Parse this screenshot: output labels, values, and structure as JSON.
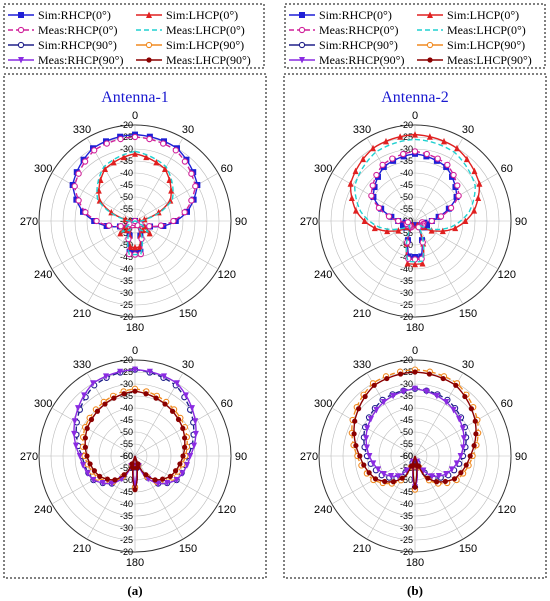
{
  "panels": [
    {
      "caption": "(a)",
      "title": "Antenna-1"
    },
    {
      "caption": "(b)",
      "title": "Antenna-2"
    }
  ],
  "legend_items": [
    {
      "label": "Sim:RHCP(0°)",
      "color": "#1f1fd6",
      "dash": "none",
      "marker": "square-filled"
    },
    {
      "label": "Sim:LHCP(0°)",
      "color": "#e02020",
      "dash": "none",
      "marker": "triangle-filled"
    },
    {
      "label": "Meas:RHCP(0°)",
      "color": "#d0209a",
      "dash": "dash",
      "marker": "circle-open"
    },
    {
      "label": "Meas:LHCP(0°)",
      "color": "#20d0d0",
      "dash": "dash",
      "marker": "none"
    },
    {
      "label": "Sim:RHCP(90°)",
      "color": "#20208a",
      "dash": "none",
      "marker": "circle-open"
    },
    {
      "label": "Sim:LHCP(90°)",
      "color": "#f08a20",
      "dash": "none",
      "marker": "circle-open"
    },
    {
      "label": "Meas:RHCP(90°)",
      "color": "#8a2be2",
      "dash": "none",
      "marker": "triangle-down-filled"
    },
    {
      "label": "Meas:LHCP(90°)",
      "color": "#8b0000",
      "dash": "none",
      "marker": "circle-filled"
    }
  ],
  "chart_data": [
    {
      "type": "polar-line",
      "panel": "Antenna-1",
      "plane": "0°",
      "r_range": [
        -60,
        -20
      ],
      "r_ticks": [
        "-20",
        "-25",
        "-30",
        "-35",
        "-40",
        "-45",
        "-50",
        "-55",
        "-60"
      ],
      "angle_ticks": [
        "0",
        "30",
        "60",
        "90",
        "120",
        "150",
        "180",
        "210",
        "240",
        "270",
        "300",
        "330"
      ],
      "series": [
        {
          "name": "Sim:RHCP(0°)",
          "color": "#1f1fd6",
          "style": "solid",
          "theta": [
            0,
            30,
            60,
            80,
            100,
            115,
            130,
            150,
            170,
            180,
            190,
            210,
            230,
            245,
            260,
            280,
            300,
            330
          ],
          "db": [
            -24,
            -25,
            -30,
            -38,
            -48,
            -56,
            -60,
            -60,
            -47,
            -47,
            -47,
            -60,
            -60,
            -56,
            -48,
            -38,
            -30,
            -25
          ]
        },
        {
          "name": "Sim:LHCP(0°)",
          "color": "#e02020",
          "style": "solid",
          "theta": [
            0,
            30,
            60,
            80,
            100,
            115,
            130,
            150,
            170,
            180,
            190,
            210,
            230,
            245,
            260,
            280,
            300,
            330
          ],
          "db": [
            -32,
            -35,
            -43,
            -56,
            -60,
            -57,
            -52,
            -58,
            -49,
            -49,
            -49,
            -58,
            -52,
            -57,
            -60,
            -56,
            -43,
            -35
          ]
        },
        {
          "name": "Meas:RHCP(0°)",
          "color": "#d0209a",
          "style": "dash",
          "theta": [
            0,
            30,
            60,
            80,
            100,
            115,
            130,
            150,
            170,
            180,
            190,
            210,
            230,
            245,
            260,
            280,
            300,
            330
          ],
          "db": [
            -25,
            -26,
            -31,
            -39,
            -49,
            -56,
            -60,
            -58,
            -46,
            -46,
            -46,
            -58,
            -60,
            -56,
            -49,
            -39,
            -31,
            -26
          ]
        },
        {
          "name": "Meas:LHCP(0°)",
          "color": "#20d0d0",
          "style": "dash",
          "theta": [
            0,
            30,
            60,
            80,
            100,
            115,
            130,
            150,
            170,
            180,
            190,
            210,
            230,
            245,
            260,
            280,
            300,
            330
          ],
          "db": [
            -31,
            -34,
            -42,
            -55,
            -60,
            -59,
            -53,
            -56,
            -46,
            -46,
            -46,
            -56,
            -53,
            -59,
            -60,
            -55,
            -42,
            -34
          ]
        }
      ]
    },
    {
      "type": "polar-line",
      "panel": "Antenna-1",
      "plane": "90°",
      "r_range": [
        -60,
        -20
      ],
      "r_ticks": [
        "-20",
        "-25",
        "-30",
        "-35",
        "-40",
        "-45",
        "-50",
        "-55",
        "-60"
      ],
      "angle_ticks": [
        "0",
        "30",
        "60",
        "90",
        "120",
        "150",
        "180",
        "210",
        "240",
        "270",
        "300",
        "330"
      ],
      "series": [
        {
          "name": "Sim:RHCP(90°)",
          "color": "#20208a",
          "style": "dash",
          "theta": [
            0,
            30,
            60,
            90,
            120,
            140,
            155,
            165,
            175,
            180,
            185,
            195,
            205,
            220,
            240,
            270,
            300,
            330
          ],
          "db": [
            -24,
            -26,
            -32,
            -38,
            -40,
            -45,
            -52,
            -60,
            -50,
            -47,
            -50,
            -60,
            -52,
            -45,
            -40,
            -38,
            -32,
            -26
          ]
        },
        {
          "name": "Sim:LHCP(90°)",
          "color": "#f08a20",
          "style": "dash",
          "theta": [
            0,
            30,
            60,
            90,
            120,
            140,
            155,
            165,
            175,
            180,
            185,
            195,
            205,
            220,
            240,
            270,
            300,
            330
          ],
          "db": [
            -32,
            -34,
            -36,
            -39,
            -42,
            -46,
            -52,
            -60,
            -51,
            -47,
            -51,
            -60,
            -52,
            -46,
            -42,
            -39,
            -36,
            -34
          ]
        },
        {
          "name": "Meas:RHCP(90°)",
          "color": "#8a2be2",
          "style": "solid",
          "theta": [
            0,
            30,
            60,
            90,
            120,
            140,
            155,
            165,
            175,
            180,
            185,
            195,
            205,
            220,
            240,
            270,
            300,
            330
          ],
          "db": [
            -24,
            -25,
            -31,
            -37,
            -40,
            -45,
            -51,
            -60,
            -52,
            -48,
            -52,
            -60,
            -51,
            -45,
            -40,
            -37,
            -31,
            -25
          ]
        },
        {
          "name": "Meas:LHCP(90°)",
          "color": "#8b0000",
          "style": "solid",
          "theta": [
            0,
            30,
            60,
            90,
            120,
            140,
            155,
            165,
            175,
            180,
            185,
            195,
            205,
            220,
            240,
            270,
            300,
            330
          ],
          "db": [
            -33,
            -35,
            -37,
            -40,
            -43,
            -47,
            -53,
            -60,
            -50,
            -46,
            -50,
            -60,
            -53,
            -47,
            -43,
            -40,
            -37,
            -35
          ]
        }
      ]
    },
    {
      "type": "polar-line",
      "panel": "Antenna-2",
      "plane": "0°",
      "r_range": [
        -60,
        -20
      ],
      "r_ticks": [
        "-20",
        "-25",
        "-30",
        "-35",
        "-40",
        "-45",
        "-50",
        "-55",
        "-60"
      ],
      "angle_ticks": [
        "0",
        "30",
        "60",
        "90",
        "120",
        "150",
        "180",
        "210",
        "240",
        "270",
        "300",
        "330"
      ],
      "series": [
        {
          "name": "Sim:RHCP(0°)",
          "color": "#1f1fd6",
          "style": "solid",
          "theta": [
            0,
            30,
            60,
            80,
            100,
            115,
            130,
            150,
            170,
            180,
            190,
            210,
            230,
            245,
            260,
            280,
            300,
            330
          ],
          "db": [
            -32,
            -34,
            -40,
            -50,
            -56,
            -54,
            -56,
            -58,
            -45,
            -45,
            -45,
            -58,
            -56,
            -54,
            -56,
            -50,
            -40,
            -34
          ]
        },
        {
          "name": "Sim:LHCP(0°)",
          "color": "#e02020",
          "style": "solid",
          "theta": [
            0,
            30,
            60,
            80,
            100,
            115,
            130,
            150,
            170,
            180,
            190,
            210,
            230,
            245,
            260,
            280,
            300,
            330
          ],
          "db": [
            -24,
            -25,
            -29,
            -35,
            -43,
            -50,
            -56,
            -58,
            -42,
            -42,
            -42,
            -58,
            -56,
            -50,
            -43,
            -35,
            -29,
            -25
          ]
        },
        {
          "name": "Meas:RHCP(0°)",
          "color": "#d0209a",
          "style": "dash",
          "theta": [
            0,
            30,
            60,
            80,
            100,
            115,
            130,
            150,
            170,
            180,
            190,
            210,
            230,
            245,
            260,
            280,
            300,
            330
          ],
          "db": [
            -31,
            -33,
            -39,
            -49,
            -57,
            -56,
            -57,
            -57,
            -44,
            -44,
            -44,
            -57,
            -57,
            -56,
            -57,
            -49,
            -39,
            -33
          ]
        },
        {
          "name": "Meas:LHCP(0°)",
          "color": "#20d0d0",
          "style": "dash",
          "theta": [
            0,
            30,
            60,
            80,
            100,
            115,
            130,
            150,
            170,
            180,
            190,
            210,
            230,
            245,
            260,
            280,
            300,
            330
          ],
          "db": [
            -26,
            -27,
            -31,
            -37,
            -45,
            -52,
            -57,
            -56,
            -43,
            -43,
            -43,
            -56,
            -57,
            -52,
            -45,
            -37,
            -31,
            -27
          ]
        }
      ]
    },
    {
      "type": "polar-line",
      "panel": "Antenna-2",
      "plane": "90°",
      "r_range": [
        -60,
        -20
      ],
      "r_ticks": [
        "-20",
        "-25",
        "-30",
        "-35",
        "-40",
        "-45",
        "-50",
        "-55",
        "-60"
      ],
      "angle_ticks": [
        "0",
        "30",
        "60",
        "90",
        "120",
        "150",
        "180",
        "210",
        "240",
        "270",
        "300",
        "330"
      ],
      "series": [
        {
          "name": "Sim:RHCP(90°)",
          "color": "#20208a",
          "style": "dash",
          "theta": [
            0,
            30,
            60,
            90,
            120,
            140,
            155,
            165,
            175,
            180,
            185,
            195,
            205,
            220,
            240,
            270,
            300,
            330
          ],
          "db": [
            -32,
            -33,
            -36,
            -40,
            -44,
            -48,
            -54,
            -60,
            -50,
            -47,
            -50,
            -60,
            -54,
            -48,
            -44,
            -40,
            -36,
            -33
          ]
        },
        {
          "name": "Sim:LHCP(90°)",
          "color": "#f08a20",
          "style": "dash",
          "theta": [
            0,
            30,
            60,
            90,
            120,
            140,
            155,
            165,
            175,
            180,
            185,
            195,
            205,
            220,
            240,
            270,
            300,
            330
          ],
          "db": [
            -24,
            -25,
            -30,
            -36,
            -40,
            -45,
            -50,
            -60,
            -51,
            -46,
            -51,
            -60,
            -50,
            -45,
            -40,
            -36,
            -30,
            -25
          ]
        },
        {
          "name": "Meas:RHCP(90°)",
          "color": "#8a2be2",
          "style": "solid",
          "theta": [
            0,
            30,
            60,
            90,
            120,
            140,
            155,
            165,
            175,
            180,
            185,
            195,
            205,
            220,
            240,
            270,
            300,
            330
          ],
          "db": [
            -32,
            -34,
            -37,
            -41,
            -45,
            -49,
            -55,
            -60,
            -50,
            -47,
            -50,
            -60,
            -55,
            -49,
            -45,
            -41,
            -37,
            -34
          ]
        },
        {
          "name": "Meas:LHCP(90°)",
          "color": "#8b0000",
          "style": "solid",
          "theta": [
            0,
            30,
            60,
            90,
            120,
            140,
            155,
            165,
            175,
            180,
            185,
            195,
            205,
            220,
            240,
            270,
            300,
            330
          ],
          "db": [
            -25,
            -26,
            -31,
            -37,
            -41,
            -46,
            -51,
            -60,
            -52,
            -47,
            -52,
            -60,
            -51,
            -46,
            -41,
            -37,
            -31,
            -26
          ]
        }
      ]
    }
  ]
}
